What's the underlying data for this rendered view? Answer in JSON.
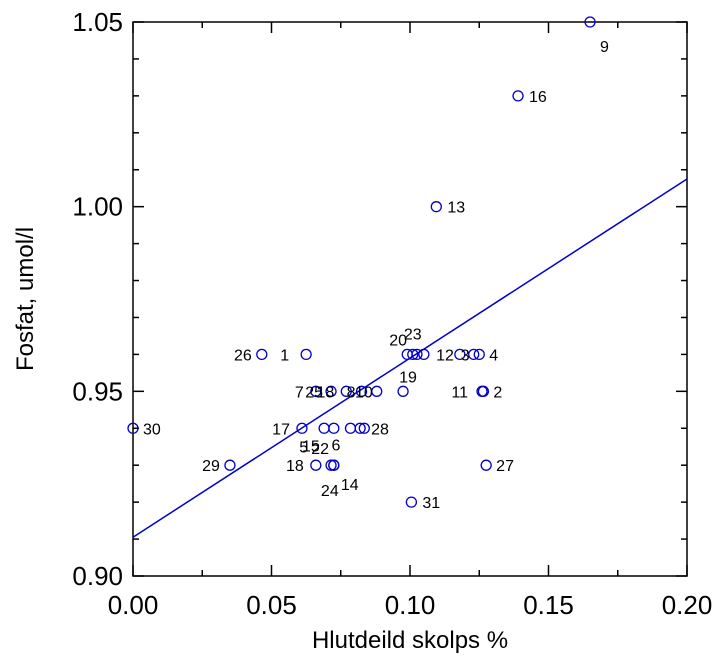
{
  "chart_data": {
    "type": "scatter",
    "title": "",
    "xlabel": "Hlutdeild skolps %",
    "ylabel": "Fosfat, umol/l",
    "xlim": [
      0.0,
      0.2
    ],
    "ylim": [
      0.9,
      1.05
    ],
    "x_ticks": [
      "0.00",
      "0.05",
      "0.10",
      "0.15",
      "0.20"
    ],
    "y_ticks": [
      "0.90",
      "0.95",
      "1.00",
      "1.05"
    ],
    "grid": false,
    "marker_color": "#0000cc",
    "line_color": "#0000cc",
    "trendline": {
      "x": [
        0.0,
        0.2
      ],
      "y": [
        0.9105,
        1.0075
      ]
    },
    "points": [
      {
        "label": "1",
        "x": 0.0625,
        "y": 0.96
      },
      {
        "label": "2",
        "x": 0.1265,
        "y": 0.95
      },
      {
        "label": "3",
        "x": 0.123,
        "y": 0.96
      },
      {
        "label": "4",
        "x": 0.125,
        "y": 0.96
      },
      {
        "label": "5",
        "x": 0.069,
        "y": 0.94
      },
      {
        "label": "6",
        "x": 0.0785,
        "y": 0.94
      },
      {
        "label": "7",
        "x": 0.066,
        "y": 0.95
      },
      {
        "label": "8",
        "x": 0.0825,
        "y": 0.95
      },
      {
        "label": "9",
        "x": 0.165,
        "y": 1.05
      },
      {
        "label": "10",
        "x": 0.088,
        "y": 0.95
      },
      {
        "label": "11",
        "x": 0.126,
        "y": 0.95
      },
      {
        "label": "12",
        "x": 0.118,
        "y": 0.96
      },
      {
        "label": "13",
        "x": 0.1095,
        "y": 1.0
      },
      {
        "label": "14",
        "x": 0.0725,
        "y": 0.93
      },
      {
        "label": "15",
        "x": 0.0725,
        "y": 0.94
      },
      {
        "label": "16",
        "x": 0.139,
        "y": 1.03
      },
      {
        "label": "17",
        "x": 0.061,
        "y": 0.94
      },
      {
        "label": "18",
        "x": 0.077,
        "y": 0.95
      },
      {
        "label": "18",
        "x": 0.066,
        "y": 0.93
      },
      {
        "label": "19",
        "x": 0.0975,
        "y": 0.95
      },
      {
        "label": "20",
        "x": 0.099,
        "y": 0.96
      },
      {
        "label": "22",
        "x": 0.0715,
        "y": 0.93
      },
      {
        "label": "23",
        "x": 0.101,
        "y": 0.96
      },
      {
        "label": "24",
        "x": 0.0725,
        "y": 0.93
      },
      {
        "label": "25",
        "x": 0.0715,
        "y": 0.95
      },
      {
        "label": "26",
        "x": 0.0465,
        "y": 0.96
      },
      {
        "label": "27",
        "x": 0.1275,
        "y": 0.93
      },
      {
        "label": "28",
        "x": 0.082,
        "y": 0.94
      },
      {
        "label": "29",
        "x": 0.035,
        "y": 0.93
      },
      {
        "label": "30",
        "x": 0.0,
        "y": 0.94
      },
      {
        "label": "31",
        "x": 0.1005,
        "y": 0.92
      },
      {
        "label": "",
        "x": 0.105,
        "y": 0.96
      },
      {
        "label": "",
        "x": 0.1025,
        "y": 0.96
      },
      {
        "label": "",
        "x": 0.0835,
        "y": 0.94
      }
    ]
  }
}
